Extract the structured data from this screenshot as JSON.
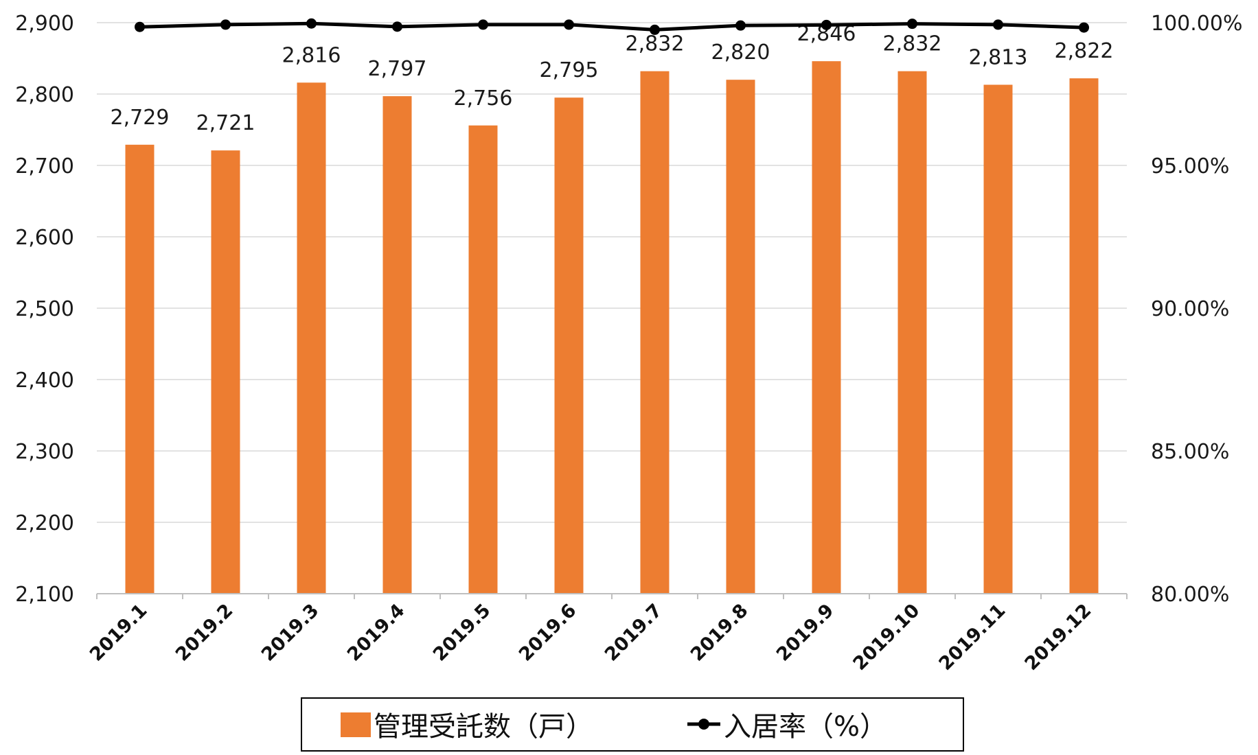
{
  "chart_data": {
    "type": "bar",
    "categories": [
      "2019.1",
      "2019.2",
      "2019.3",
      "2019.4",
      "2019.5",
      "2019.6",
      "2019.7",
      "2019.8",
      "2019.9",
      "2019.10",
      "2019.11",
      "2019.12"
    ],
    "series": [
      {
        "name": "管理受託数（戸）",
        "type": "bar",
        "axis": "left",
        "color": "#ED7D31",
        "values": [
          2729,
          2721,
          2816,
          2797,
          2756,
          2795,
          2832,
          2820,
          2846,
          2832,
          2813,
          2822
        ],
        "labels": [
          "2,729",
          "2,721",
          "2,816",
          "2,797",
          "2,756",
          "2,795",
          "2,832",
          "2,820",
          "2,846",
          "2,832",
          "2,813",
          "2,822"
        ]
      },
      {
        "name": "入居率（%）",
        "type": "line",
        "axis": "right",
        "color": "#000000",
        "values": [
          99.85,
          99.93,
          99.97,
          99.86,
          99.93,
          99.93,
          99.75,
          99.9,
          99.92,
          99.96,
          99.93,
          99.83
        ]
      }
    ],
    "y_left": {
      "ylim": [
        2100,
        2900
      ],
      "ticks": [
        2100,
        2200,
        2300,
        2400,
        2500,
        2600,
        2700,
        2800,
        2900
      ],
      "tick_labels": [
        "2,100",
        "2,200",
        "2,300",
        "2,400",
        "2,500",
        "2,600",
        "2,700",
        "2,800",
        "2,900"
      ]
    },
    "y_right": {
      "ylim": [
        80,
        100
      ],
      "ticks": [
        80,
        85,
        90,
        95,
        100
      ],
      "tick_labels": [
        "80.00%",
        "85.00%",
        "90.00%",
        "95.00%",
        "100.00%"
      ]
    },
    "grid": true,
    "legend_position": "bottom"
  }
}
